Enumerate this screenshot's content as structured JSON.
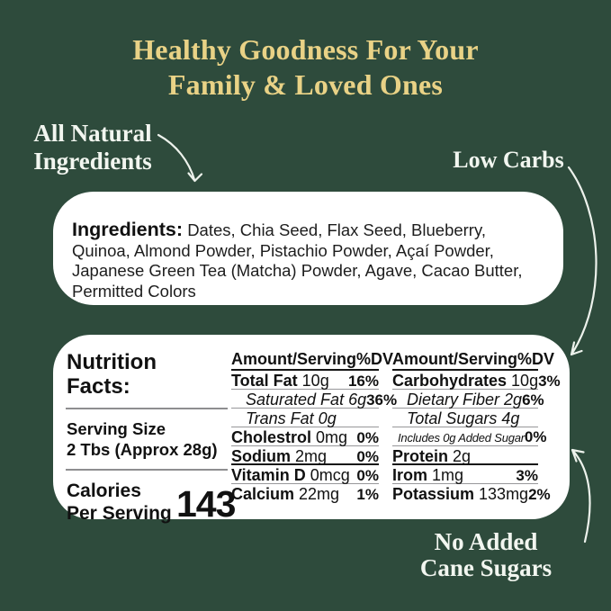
{
  "colors": {
    "bg": "#2E4B3C",
    "gold": "#E9D286",
    "light": "#F2F6F0",
    "card": "#FFFFFF"
  },
  "title": {
    "line1": "Healthy Goodness For Your",
    "line2": "Family & Loved Ones"
  },
  "callouts": {
    "all_natural": {
      "line1": "All Natural",
      "line2": "Ingredients"
    },
    "low_carbs": "Low Carbs",
    "no_added": {
      "line1": "No Added",
      "line2": "Cane Sugars"
    }
  },
  "ingredients": {
    "label": "Ingredients:",
    "text": "Dates, Chia Seed, Flax Seed, Blueberry, Quinoa, Almond Powder, Pistachio Powder, Açaí Powder, Japanese Green Tea (Matcha) Powder, Agave, Cacao Butter, Permitted Colors"
  },
  "nutrition": {
    "title_line1": "Nutrition",
    "title_line2": "Facts:",
    "serving_label": "Serving Size",
    "serving_value": "2 Tbs (Approx 28g)",
    "calories_label_line1": "Calories",
    "calories_label_line2": "Per Serving",
    "calories_value": "143",
    "col_header_amount": "Amount/Serving",
    "col_header_dv": "%DV",
    "columns": [
      {
        "rows": [
          {
            "bold": "Total Fat",
            "rest": " 10g",
            "dv": "16%"
          },
          {
            "rest": "Saturated Fat 6g",
            "dv": "36%",
            "italic": true
          },
          {
            "rest": "Trans Fat 0g",
            "dv": "",
            "italic": true
          },
          {
            "bold": "Cholestrol",
            "rest": " 0mg",
            "dv": "0%"
          },
          {
            "bold": "Sodium",
            "rest": " 2mg",
            "dv": "0%",
            "sep": "thick"
          },
          {
            "bold": "Vitamin D",
            "rest": " 0mcg",
            "dv": "0%"
          },
          {
            "bold": "Calcium",
            "rest": " 22mg",
            "dv": "1%",
            "sep": "nosep"
          }
        ]
      },
      {
        "rows": [
          {
            "bold": "Carbohydrates",
            "rest": " 10g",
            "dv": "3%"
          },
          {
            "rest": "Dietary Fiber 2g",
            "dv": "6%",
            "italic": true
          },
          {
            "rest": "Total Sugars 4g",
            "dv": "",
            "italic": true
          },
          {
            "rest": "Includes 0g Added Sugar",
            "dv": "0%",
            "small": true
          },
          {
            "bold": "Protein",
            "rest": " 2g",
            "dv": "",
            "sep": "thick"
          },
          {
            "bold": "Irom",
            "rest": " 1mg",
            "dv": "3%"
          },
          {
            "bold": "Potassium",
            "rest": " 133mg",
            "dv": "2%",
            "sep": "nosep"
          }
        ]
      }
    ]
  }
}
